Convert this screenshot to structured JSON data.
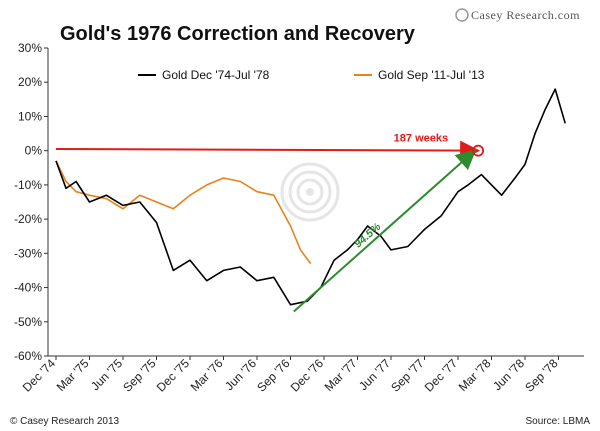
{
  "chart_data": {
    "type": "line",
    "title": "Gold's 1976 Correction and Recovery",
    "brand": "Casey Research.com",
    "footer_left": "© Casey Research 2013",
    "footer_right": "Source: LBMA",
    "ylim": [
      -60,
      30
    ],
    "yticks": [
      "-60%",
      "-50%",
      "-40%",
      "-30%",
      "-20%",
      "-10%",
      "0%",
      "10%",
      "20%",
      "30%"
    ],
    "x_categories": [
      "Dec '74",
      "Mar '75",
      "Jun '75",
      "Sep '75",
      "Dec '75",
      "Mar '76",
      "Jun '76",
      "Sep '76",
      "Dec '76",
      "Mar '77",
      "Jun '77",
      "Sep '77",
      "Dec '77",
      "Mar '78",
      "Jun '78",
      "Sep '78"
    ],
    "legend": {
      "position": "top"
    },
    "colors": {
      "black_series": "#000000",
      "orange_series": "#e8821e",
      "arrow_red": "#e01b1b",
      "arrow_green": "#2e8b2e"
    },
    "series": [
      {
        "name": "Gold Dec '74-Jul '78",
        "x": [
          0,
          0.3,
          0.6,
          1,
          1.5,
          2,
          2.5,
          3,
          3.5,
          4,
          4.5,
          5,
          5.5,
          6,
          6.5,
          7,
          7.5,
          7.9,
          8.3,
          8.7,
          9,
          9.3,
          9.7,
          10,
          10.5,
          11,
          11.5,
          12,
          12.3,
          12.7,
          13,
          13.3,
          13.7,
          14,
          14.3,
          14.6,
          14.9,
          15.2
        ],
        "values": [
          -3,
          -11,
          -9,
          -15,
          -13,
          -16,
          -15,
          -21,
          -35,
          -32,
          -38,
          -35,
          -34,
          -38,
          -37,
          -45,
          -44,
          -40,
          -32,
          -29,
          -26,
          -22,
          -25,
          -29,
          -28,
          -23,
          -19,
          -12,
          -10,
          -7,
          -10,
          -13,
          -8,
          -4,
          5,
          12,
          18,
          8
        ]
      },
      {
        "name": "Gold Sep '11-Jul '13",
        "x": [
          0,
          0.3,
          0.6,
          1,
          1.5,
          2,
          2.5,
          3,
          3.5,
          4,
          4.5,
          5,
          5.5,
          6,
          6.5,
          7,
          7.3,
          7.6
        ],
        "values": [
          -3,
          -9,
          -12,
          -13,
          -14,
          -17,
          -13,
          -15,
          -17,
          -13,
          -10,
          -8,
          -9,
          -12,
          -13,
          -22,
          -29,
          -33
        ]
      }
    ],
    "annotations": [
      {
        "type": "arrow",
        "color": "red",
        "from": {
          "x": 0,
          "y": 0.5
        },
        "to": {
          "x": 12.6,
          "y": 0
        },
        "label": "187 weeks"
      },
      {
        "type": "arrow",
        "color": "green",
        "from": {
          "x": 7.1,
          "y": -47
        },
        "to": {
          "x": 12.5,
          "y": 0
        },
        "label": "94.5%"
      },
      {
        "type": "marker",
        "shape": "circle",
        "color": "red",
        "at": {
          "x": 12.6,
          "y": 0
        }
      }
    ]
  }
}
